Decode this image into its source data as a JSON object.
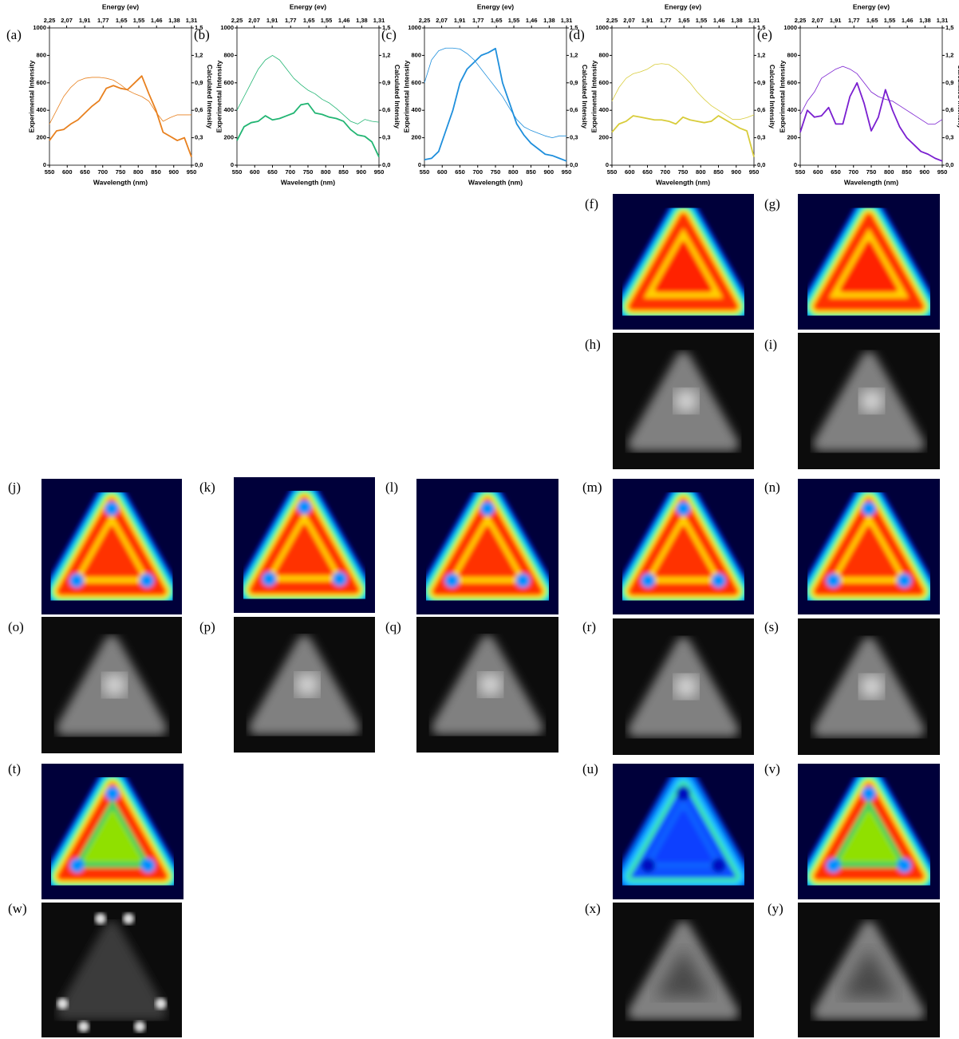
{
  "chart_data": [
    {
      "type": "line",
      "panel_label": "(a)",
      "x_label": "Wavelength (nm)",
      "y_label": "Experimental Intensity",
      "y2_label": "Calculated Intensity",
      "x2_label": "Energy (ev)",
      "x2scale": "reciprocal",
      "x": [
        550,
        570,
        590,
        610,
        630,
        650,
        670,
        690,
        710,
        730,
        750,
        770,
        790,
        810,
        830,
        850,
        870,
        890,
        910,
        930,
        950
      ],
      "xlim": [
        550,
        950
      ],
      "xticks": [
        550,
        600,
        650,
        700,
        750,
        800,
        850,
        900,
        950
      ],
      "ylim": [
        0,
        1000
      ],
      "yticks": [
        0,
        200,
        400,
        600,
        800,
        1000
      ],
      "y2lim": [
        0,
        1.5
      ],
      "y2ticks": [
        {
          "value": 0,
          "label": "0,0"
        },
        {
          "value": 0.3,
          "label": "0,3"
        },
        {
          "value": 0.6,
          "label": "0,6"
        },
        {
          "value": 0.9,
          "label": "0,9"
        },
        {
          "value": 1.2,
          "label": "1,2"
        },
        {
          "value": 1.5,
          "label": "1,5"
        }
      ],
      "x2lim": [
        2.25,
        1.31
      ],
      "x2ticks": [
        {
          "value": 2.25,
          "label": "2,25"
        },
        {
          "value": 2.07,
          "label": "2,07"
        },
        {
          "value": 1.91,
          "label": "1,91"
        },
        {
          "value": 1.77,
          "label": "1,77"
        },
        {
          "value": 1.65,
          "label": "1,65"
        },
        {
          "value": 1.55,
          "label": "1,55"
        },
        {
          "value": 1.46,
          "label": "1,46"
        },
        {
          "value": 1.38,
          "label": "1,38"
        },
        {
          "value": 1.31,
          "label": "1,31"
        }
      ],
      "series": [
        {
          "color": "#e8801e",
          "values": [
            180,
            250,
            260,
            300,
            330,
            380,
            430,
            470,
            560,
            580,
            560,
            550,
            600,
            650,
            520,
            400,
            240,
            210,
            180,
            200,
            60
          ]
        },
        {
          "color": "#e8801e",
          "axis": "y2",
          "values": [
            0.45,
            0.6,
            0.75,
            0.85,
            0.92,
            0.95,
            0.96,
            0.96,
            0.95,
            0.93,
            0.88,
            0.82,
            0.78,
            0.75,
            0.7,
            0.58,
            0.48,
            0.52,
            0.55,
            0.55,
            0.55
          ]
        }
      ]
    },
    {
      "type": "line",
      "panel_label": "(b)",
      "x_label": "Wavelength (nm)",
      "y_label": "Experimental Intensity",
      "y2_label": "Calculated Intensity",
      "x2_label": "Energy (ev)",
      "x2scale": "reciprocal",
      "x": [
        550,
        570,
        590,
        610,
        630,
        650,
        670,
        690,
        710,
        730,
        750,
        770,
        790,
        810,
        830,
        850,
        870,
        890,
        910,
        930,
        950
      ],
      "xlim": [
        550,
        950
      ],
      "xticks": [
        550,
        600,
        650,
        700,
        750,
        800,
        850,
        900,
        950
      ],
      "ylim": [
        0,
        1000
      ],
      "yticks": [
        0,
        200,
        400,
        600,
        800,
        1000
      ],
      "y2lim": [
        0,
        1.5
      ],
      "y2ticks": [
        {
          "value": 0,
          "label": "0,0"
        },
        {
          "value": 0.3,
          "label": "0,3"
        },
        {
          "value": 0.6,
          "label": "0,6"
        },
        {
          "value": 0.9,
          "label": "0,9"
        },
        {
          "value": 1.2,
          "label": "1,2"
        },
        {
          "value": 1.5,
          "label": "1,5"
        }
      ],
      "x2lim": [
        2.25,
        1.31
      ],
      "x2ticks": [
        {
          "value": 2.25,
          "label": "2,25"
        },
        {
          "value": 2.07,
          "label": "2,07"
        },
        {
          "value": 1.91,
          "label": "1,91"
        },
        {
          "value": 1.77,
          "label": "1,77"
        },
        {
          "value": 1.65,
          "label": "1,65"
        },
        {
          "value": 1.55,
          "label": "1,55"
        },
        {
          "value": 1.46,
          "label": "1,46"
        },
        {
          "value": 1.38,
          "label": "1,38"
        },
        {
          "value": 1.31,
          "label": "1,31"
        }
      ],
      "series": [
        {
          "color": "#22b573",
          "values": [
            180,
            280,
            310,
            320,
            360,
            330,
            340,
            360,
            380,
            440,
            450,
            380,
            370,
            350,
            340,
            320,
            260,
            220,
            210,
            170,
            60
          ]
        },
        {
          "color": "#22b573",
          "axis": "y2",
          "values": [
            0.6,
            0.75,
            0.9,
            1.05,
            1.15,
            1.2,
            1.15,
            1.05,
            0.95,
            0.88,
            0.82,
            0.78,
            0.72,
            0.68,
            0.62,
            0.55,
            0.48,
            0.45,
            0.5,
            0.48,
            0.47
          ]
        }
      ]
    },
    {
      "type": "line",
      "panel_label": "(c)",
      "x_label": "Wavelength (nm)",
      "y_label": "Experimental Intensity",
      "y2_label": "Calculated Intensity",
      "x2_label": "Energy (ev)",
      "x2scale": "reciprocal",
      "x": [
        550,
        570,
        590,
        610,
        630,
        650,
        670,
        690,
        710,
        730,
        750,
        770,
        790,
        810,
        830,
        850,
        870,
        890,
        910,
        930,
        950
      ],
      "xlim": [
        550,
        950
      ],
      "xticks": [
        550,
        600,
        650,
        700,
        750,
        800,
        850,
        900,
        950
      ],
      "ylim": [
        0,
        1000
      ],
      "yticks": [
        0,
        200,
        400,
        600,
        800,
        1000
      ],
      "y2lim": [
        0,
        1.5
      ],
      "y2ticks": [
        {
          "value": 0,
          "label": "0,0"
        },
        {
          "value": 0.3,
          "label": "0,3"
        },
        {
          "value": 0.6,
          "label": "0,6"
        },
        {
          "value": 0.9,
          "label": "0,9"
        },
        {
          "value": 1.2,
          "label": "1,2"
        },
        {
          "value": 1.5,
          "label": "1,5"
        }
      ],
      "x2lim": [
        2.25,
        1.31
      ],
      "x2ticks": [
        {
          "value": 2.25,
          "label": "2,25"
        },
        {
          "value": 2.07,
          "label": "2,07"
        },
        {
          "value": 1.91,
          "label": "1,91"
        },
        {
          "value": 1.77,
          "label": "1,77"
        },
        {
          "value": 1.65,
          "label": "1,65"
        },
        {
          "value": 1.55,
          "label": "1,55"
        },
        {
          "value": 1.46,
          "label": "1,46"
        },
        {
          "value": 1.38,
          "label": "1,38"
        },
        {
          "value": 1.31,
          "label": "1,31"
        }
      ],
      "series": [
        {
          "color": "#1f8fdc",
          "values": [
            40,
            50,
            100,
            250,
            400,
            600,
            700,
            750,
            800,
            820,
            850,
            600,
            450,
            300,
            220,
            160,
            120,
            80,
            70,
            50,
            30
          ]
        },
        {
          "color": "#1f8fdc",
          "axis": "y2",
          "values": [
            0.9,
            1.15,
            1.25,
            1.28,
            1.28,
            1.27,
            1.22,
            1.15,
            1.05,
            0.95,
            0.85,
            0.75,
            0.62,
            0.5,
            0.42,
            0.38,
            0.35,
            0.32,
            0.3,
            0.32,
            0.32
          ]
        }
      ]
    },
    {
      "type": "line",
      "panel_label": "(d)",
      "x_label": "Wavelength (nm)",
      "y_label": "Experimental Intensity",
      "y2_label": "Calculated Intensity",
      "x2_label": "Energy (ev)",
      "x2scale": "reciprocal",
      "x": [
        550,
        570,
        590,
        610,
        630,
        650,
        670,
        690,
        710,
        730,
        750,
        770,
        790,
        810,
        830,
        850,
        870,
        890,
        910,
        930,
        950
      ],
      "xlim": [
        550,
        950
      ],
      "xticks": [
        550,
        600,
        650,
        700,
        750,
        800,
        850,
        900,
        950
      ],
      "ylim": [
        0,
        1000
      ],
      "yticks": [
        0,
        200,
        400,
        600,
        800,
        1000
      ],
      "y2lim": [
        0,
        1.5
      ],
      "y2ticks": [
        {
          "value": 0,
          "label": "0,0"
        },
        {
          "value": 0.3,
          "label": "0,3"
        },
        {
          "value": 0.6,
          "label": "0,6"
        },
        {
          "value": 0.9,
          "label": "0,9"
        },
        {
          "value": 1.2,
          "label": "1,2"
        },
        {
          "value": 1.5,
          "label": "1,5"
        }
      ],
      "x2lim": [
        2.25,
        1.31
      ],
      "x2ticks": [
        {
          "value": 2.25,
          "label": "2,25"
        },
        {
          "value": 2.07,
          "label": "2,07"
        },
        {
          "value": 1.91,
          "label": "1,91"
        },
        {
          "value": 1.77,
          "label": "1,77"
        },
        {
          "value": 1.65,
          "label": "1,65"
        },
        {
          "value": 1.55,
          "label": "1,55"
        },
        {
          "value": 1.46,
          "label": "1,46"
        },
        {
          "value": 1.38,
          "label": "1,38"
        },
        {
          "value": 1.31,
          "label": "1,31"
        }
      ],
      "series": [
        {
          "color": "#d8cc3a",
          "values": [
            240,
            300,
            320,
            360,
            350,
            340,
            330,
            330,
            320,
            300,
            350,
            330,
            320,
            310,
            320,
            360,
            330,
            300,
            270,
            250,
            60
          ]
        },
        {
          "color": "#d8cc3a",
          "axis": "y2",
          "values": [
            0.7,
            0.85,
            0.95,
            1.0,
            1.02,
            1.05,
            1.1,
            1.11,
            1.1,
            1.05,
            0.98,
            0.9,
            0.8,
            0.72,
            0.65,
            0.6,
            0.55,
            0.5,
            0.5,
            0.52,
            0.55
          ]
        }
      ]
    },
    {
      "type": "line",
      "panel_label": "(e)",
      "x_label": "Wavelength (nm)",
      "y_label": "Experimental Intensity",
      "y2_label": "Calculated Intensity",
      "x2_label": "Energy (ev)",
      "x2scale": "reciprocal",
      "x": [
        550,
        570,
        590,
        610,
        630,
        650,
        670,
        690,
        710,
        730,
        750,
        770,
        790,
        810,
        830,
        850,
        870,
        890,
        910,
        930,
        950
      ],
      "xlim": [
        550,
        950
      ],
      "xticks": [
        550,
        600,
        650,
        700,
        750,
        800,
        850,
        900,
        950
      ],
      "ylim": [
        0,
        1000
      ],
      "yticks": [
        0,
        200,
        400,
        600,
        800,
        1000
      ],
      "y2lim": [
        0,
        1.5
      ],
      "y2ticks": [
        {
          "value": 0,
          "label": "0,0"
        },
        {
          "value": 0.3,
          "label": "0,3"
        },
        {
          "value": 0.6,
          "label": "0,6"
        },
        {
          "value": 0.9,
          "label": "0,9"
        },
        {
          "value": 1.2,
          "label": "1,2"
        },
        {
          "value": 1.5,
          "label": "1,5"
        }
      ],
      "x2lim": [
        2.25,
        1.31
      ],
      "x2ticks": [
        {
          "value": 2.25,
          "label": "2,25"
        },
        {
          "value": 2.07,
          "label": "2,07"
        },
        {
          "value": 1.91,
          "label": "1,91"
        },
        {
          "value": 1.77,
          "label": "1,77"
        },
        {
          "value": 1.65,
          "label": "1,65"
        },
        {
          "value": 1.55,
          "label": "1,55"
        },
        {
          "value": 1.46,
          "label": "1,46"
        },
        {
          "value": 1.38,
          "label": "1,38"
        },
        {
          "value": 1.31,
          "label": "1,31"
        }
      ],
      "series": [
        {
          "color": "#7a1fd0",
          "values": [
            240,
            400,
            350,
            360,
            420,
            300,
            300,
            500,
            600,
            450,
            250,
            350,
            550,
            400,
            280,
            200,
            150,
            100,
            80,
            50,
            30
          ]
        },
        {
          "color": "#7a1fd0",
          "axis": "y2",
          "values": [
            0.55,
            0.7,
            0.8,
            0.95,
            1.0,
            1.05,
            1.08,
            1.05,
            1.0,
            0.9,
            0.8,
            0.75,
            0.72,
            0.7,
            0.65,
            0.6,
            0.55,
            0.5,
            0.45,
            0.45,
            0.5
          ]
        }
      ]
    }
  ],
  "image_panels": [
    "(f)",
    "(g)",
    "(h)",
    "(i)",
    "(j)",
    "(k)",
    "(l)",
    "(m)",
    "(n)",
    "(o)",
    "(p)",
    "(q)",
    "(r)",
    "(s)",
    "(t)",
    "(u)",
    "(v)",
    "(w)",
    "(x)",
    "(y)"
  ]
}
